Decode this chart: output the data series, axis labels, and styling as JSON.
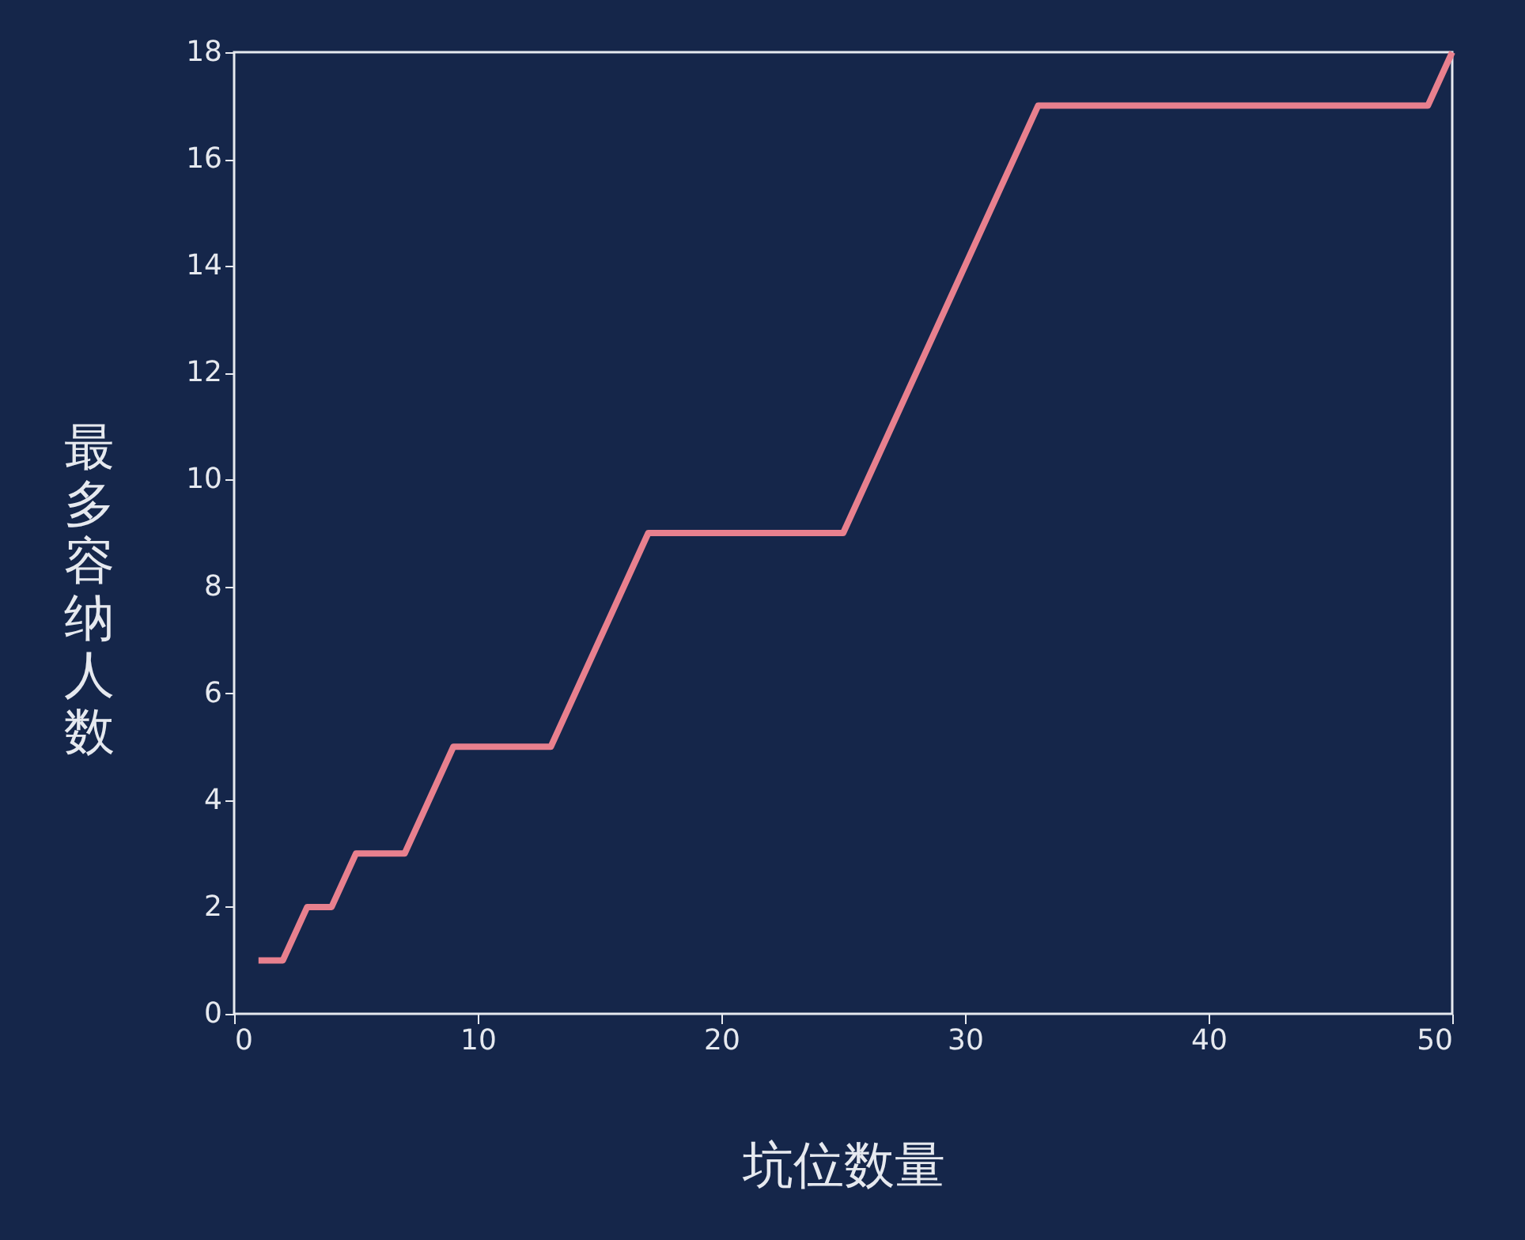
{
  "chart_data": {
    "type": "line",
    "xlabel": "坑位数量",
    "ylabel": "最多容纳人数",
    "x": [
      1,
      2,
      3,
      4,
      5,
      7,
      9,
      13,
      17,
      25,
      33,
      49,
      50
    ],
    "series": [
      {
        "color": "#e8808e",
        "values": [
          1,
          1,
          2,
          2,
          3,
          3,
          5,
          5,
          9,
          9,
          17,
          17,
          18
        ]
      }
    ],
    "xlim": [
      0,
      50
    ],
    "xticks": [
      0,
      10,
      20,
      30,
      40,
      50
    ],
    "ylim": [
      0,
      18
    ],
    "yticks": [
      0,
      2,
      4,
      6,
      8,
      10,
      12,
      14,
      16,
      18
    ],
    "grid": false,
    "marker": "none",
    "line_style": "solid"
  }
}
